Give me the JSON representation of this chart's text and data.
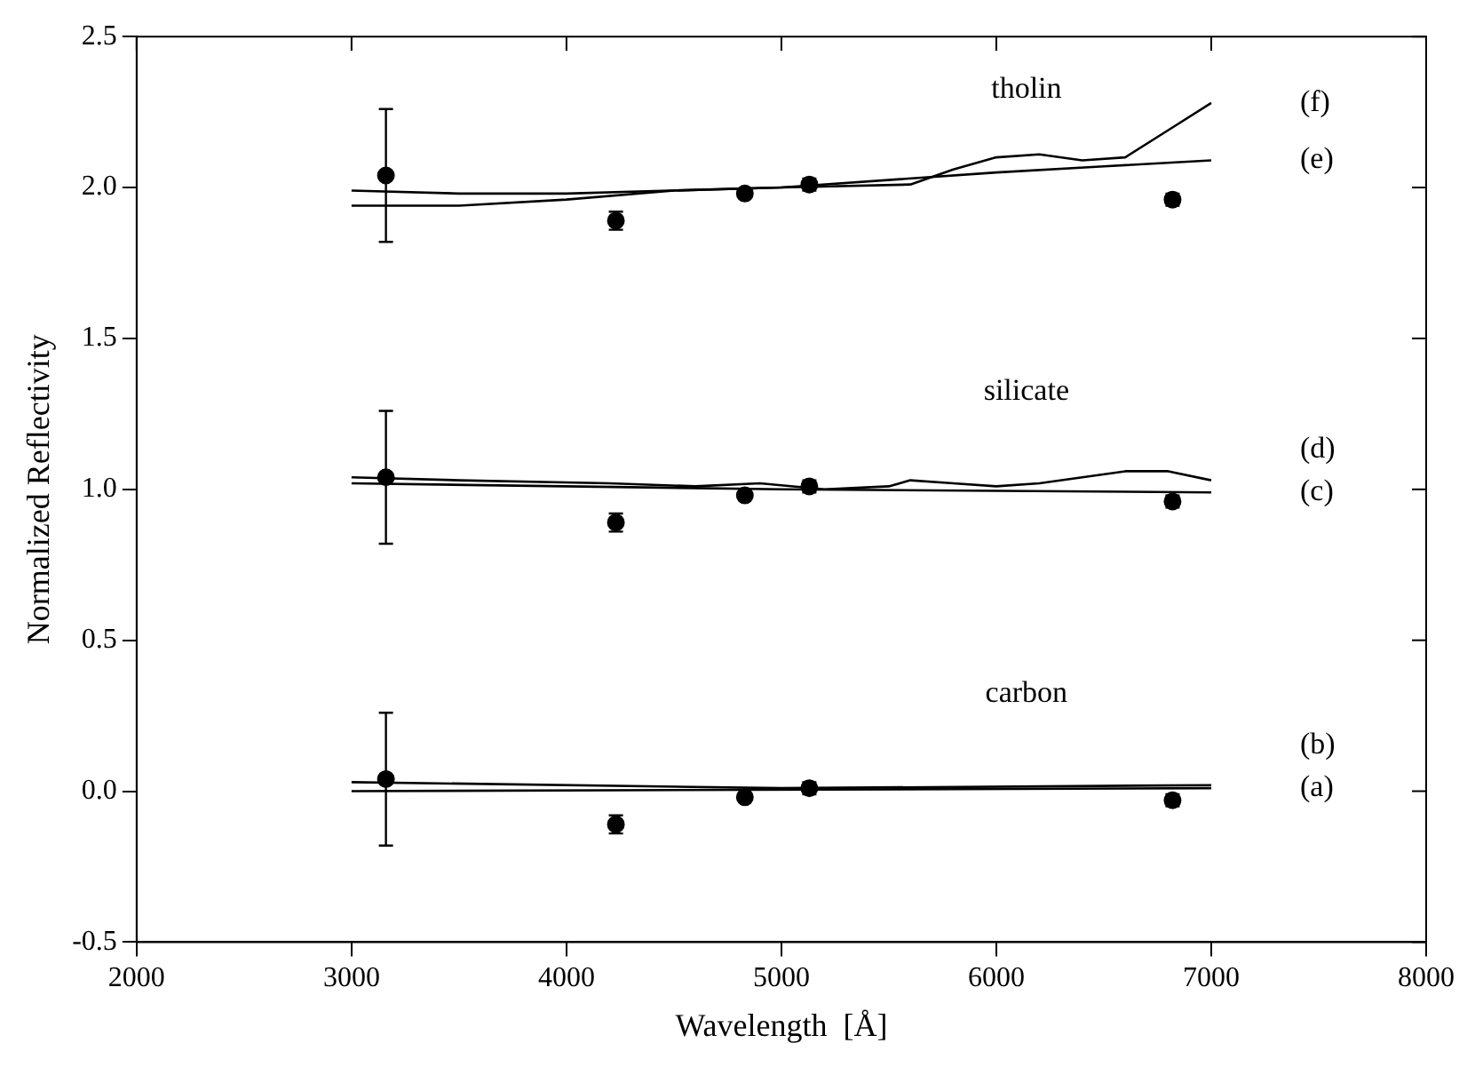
{
  "chart_data": {
    "type": "scatter",
    "xlabel": "Wavelength  [Å]",
    "ylabel": "Normalized Reflectivity",
    "xlim": [
      2000,
      8000
    ],
    "xticks": [
      2000,
      3000,
      4000,
      5000,
      6000,
      7000,
      8000
    ],
    "ylim": [
      -0.5,
      2.5
    ],
    "yticks": [
      {
        "value": -0.5,
        "label": "-0.5"
      },
      {
        "value": 0,
        "label": "0.0"
      },
      {
        "value": 0.5,
        "label": "0.5"
      },
      {
        "value": 1,
        "label": "1.0"
      },
      {
        "value": 1.5,
        "label": "1.5"
      },
      {
        "value": 2,
        "label": "2.0"
      },
      {
        "value": 2.5,
        "label": "2.5"
      }
    ],
    "grid": false,
    "legend": false,
    "series": [
      {
        "marker": "circle",
        "color": "#000000",
        "x": [
          3160,
          4230,
          4830,
          5130,
          6820
        ],
        "values": [
          2.04,
          1.89,
          1.98,
          2.01,
          1.96
        ],
        "errors": [
          0.22,
          0.03,
          null,
          0.02,
          0.02
        ]
      },
      {
        "marker": "circle",
        "color": "#000000",
        "x": [
          3160,
          4230,
          4830,
          5130,
          6820
        ],
        "values": [
          1.04,
          0.89,
          0.98,
          1.01,
          0.96
        ],
        "errors": [
          0.22,
          0.03,
          null,
          0.02,
          0.02
        ]
      },
      {
        "marker": "circle",
        "color": "#000000",
        "x": [
          3160,
          4230,
          4830,
          5130,
          6820
        ],
        "values": [
          0.04,
          -0.11,
          -0.02,
          0.01,
          -0.03
        ],
        "errors": [
          0.22,
          0.03,
          null,
          0.02,
          0.02
        ]
      },
      {
        "type": "line",
        "marker": "none",
        "name": "(a)",
        "color": "#000000",
        "x": [
          3000,
          7000
        ],
        "values": [
          0.0,
          0.01
        ]
      },
      {
        "type": "line",
        "marker": "none",
        "name": "(b)",
        "color": "#000000",
        "x": [
          3000,
          5000,
          7000
        ],
        "values": [
          0.03,
          0.01,
          0.02
        ]
      },
      {
        "type": "line",
        "marker": "none",
        "name": "(c)",
        "color": "#000000",
        "x": [
          3000,
          5000,
          7000
        ],
        "values": [
          1.02,
          1.0,
          0.99
        ]
      },
      {
        "type": "line",
        "marker": "none",
        "name": "(d)",
        "color": "#000000",
        "x": [
          3000,
          3500,
          4200,
          4600,
          4900,
          5200,
          5500,
          5600,
          5800,
          6000,
          6200,
          6400,
          6600,
          6800,
          7000
        ],
        "values": [
          1.04,
          1.03,
          1.02,
          1.01,
          1.02,
          1.0,
          1.01,
          1.03,
          1.02,
          1.01,
          1.02,
          1.04,
          1.06,
          1.06,
          1.03
        ]
      },
      {
        "type": "line",
        "marker": "none",
        "name": "(e)",
        "color": "#000000",
        "x": [
          3000,
          3500,
          4000,
          5000,
          6000,
          6500,
          7000
        ],
        "values": [
          1.99,
          1.98,
          1.98,
          2.0,
          2.05,
          2.07,
          2.09
        ]
      },
      {
        "type": "line",
        "marker": "none",
        "name": "(f)",
        "color": "#000000",
        "x": [
          3000,
          3500,
          4000,
          4500,
          5000,
          5600,
          5800,
          6000,
          6200,
          6400,
          6600,
          6800,
          7000
        ],
        "values": [
          1.94,
          1.94,
          1.96,
          1.99,
          2.0,
          2.01,
          2.06,
          2.1,
          2.11,
          2.09,
          2.1,
          2.19,
          2.28
        ]
      }
    ],
    "annotations": [
      "tholin",
      "silicate",
      "carbon"
    ]
  }
}
